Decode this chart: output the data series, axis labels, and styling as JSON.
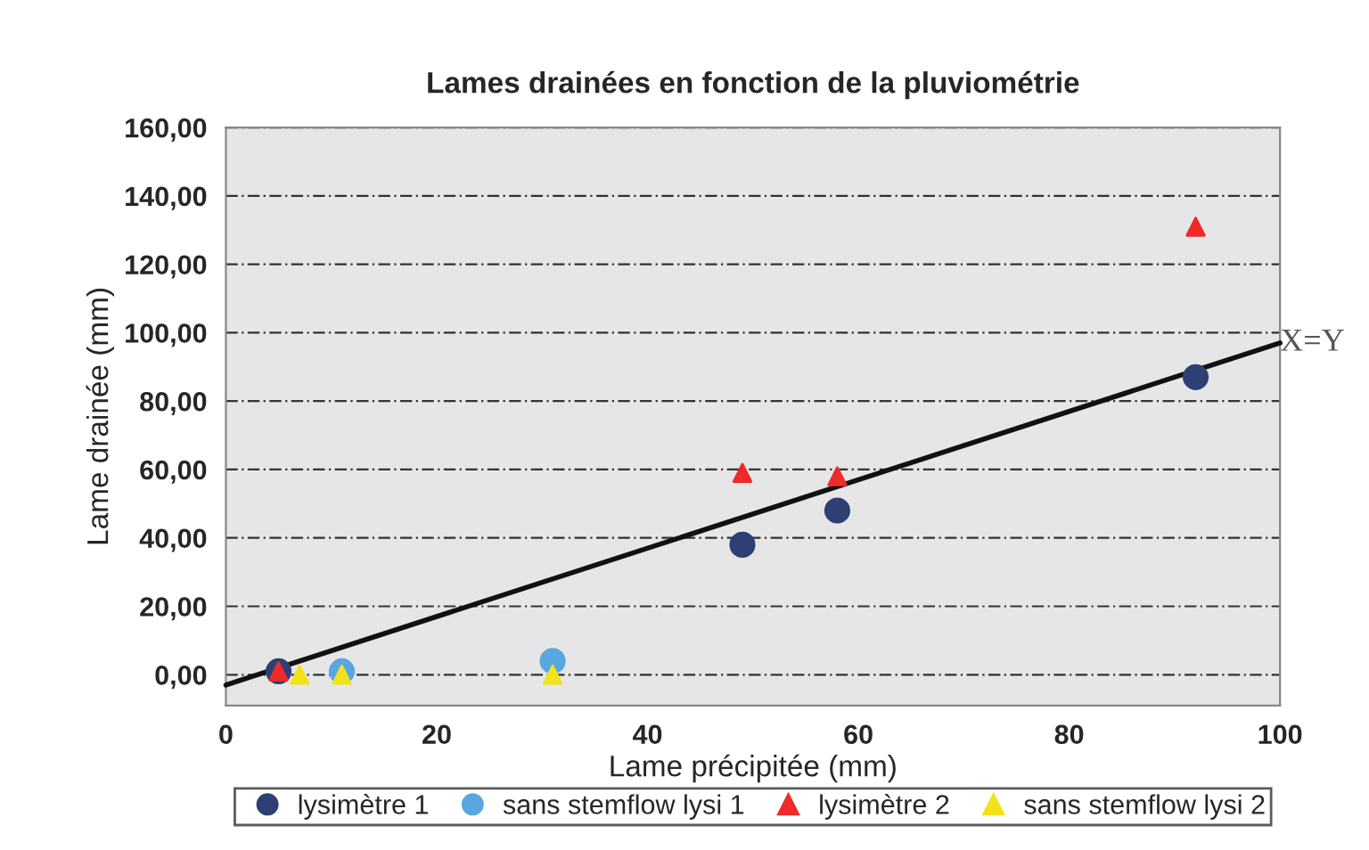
{
  "chart_data": {
    "type": "scatter",
    "title": "Lames drainées en fonction de la pluviométrie",
    "xlabel": "Lame précipitée (mm)",
    "ylabel": "Lame drainée (mm)",
    "series": [
      {
        "name": "lysimètre 1",
        "color": "#2e3f73",
        "marker": "circle",
        "x": [
          5,
          49,
          58,
          92
        ],
        "values": [
          1,
          38,
          48,
          87
        ]
      },
      {
        "name": "sans stemflow lysi 1",
        "color": "#5aa7e0",
        "marker": "circle",
        "x": [
          11,
          31
        ],
        "values": [
          1,
          4
        ]
      },
      {
        "name": "lysimètre 2",
        "color": "#ee2a2a",
        "marker": "triangle",
        "x": [
          5,
          49,
          58,
          92
        ],
        "values": [
          1,
          59,
          58,
          131
        ]
      },
      {
        "name": "sans stemflow lysi 2",
        "color": "#f2e21c",
        "marker": "triangle",
        "x": [
          7,
          11,
          31
        ],
        "values": [
          0,
          0,
          0
        ]
      },
      {
        "type": "line",
        "color": "#111111",
        "x": [
          0,
          100
        ],
        "values": [
          -3,
          97
        ]
      }
    ],
    "annotations": [
      {
        "text": "X=Y",
        "x": 100,
        "y": 97
      }
    ],
    "xlim": [
      0,
      100
    ],
    "xticks": [
      0,
      20,
      40,
      60,
      80,
      100
    ],
    "ylim": [
      -9,
      160
    ],
    "yticks": [
      {
        "value": 0,
        "label": "0,00"
      },
      {
        "value": 20,
        "label": "20,00"
      },
      {
        "value": 40,
        "label": "40,00"
      },
      {
        "value": 60,
        "label": "60,00"
      },
      {
        "value": 80,
        "label": "80,00"
      },
      {
        "value": 100,
        "label": "100,00"
      },
      {
        "value": 120,
        "label": "120,00"
      },
      {
        "value": 140,
        "label": "140,00"
      },
      {
        "value": 160,
        "label": "160,00"
      }
    ],
    "grid": "y",
    "legend": "bottom"
  }
}
